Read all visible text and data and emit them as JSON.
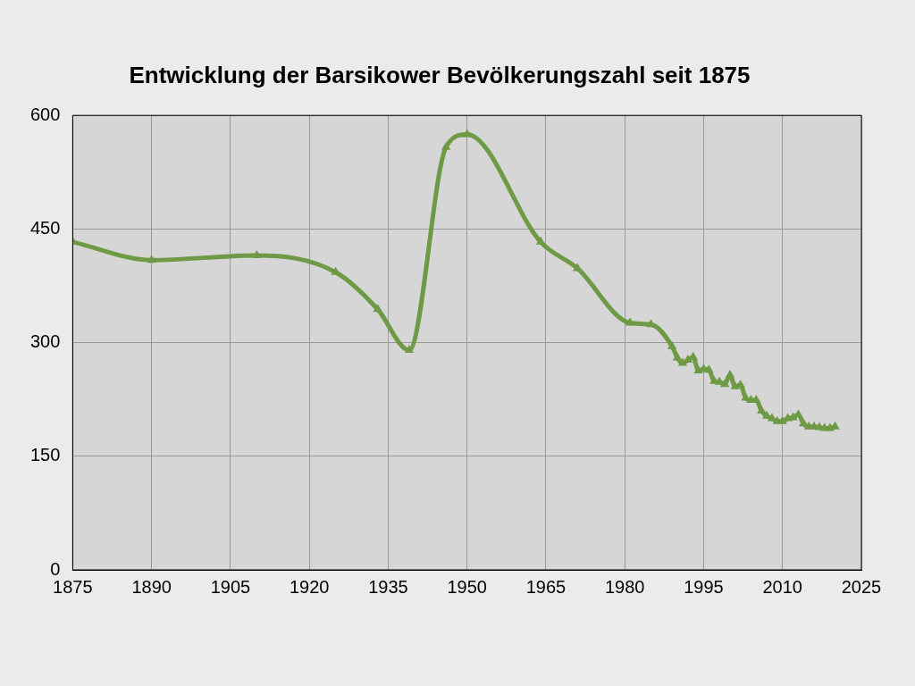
{
  "chart_data": {
    "type": "line",
    "title": "Entwicklung der Barsikower Bevölkerungszahl seit 1875",
    "x": [
      1875,
      1890,
      1910,
      1925,
      1933,
      1939,
      1946,
      1950,
      1964,
      1971,
      1981,
      1985,
      1989,
      1990,
      1991,
      1992,
      1993,
      1994,
      1995,
      1996,
      1997,
      1998,
      1999,
      2000,
      2001,
      2002,
      2003,
      2004,
      2005,
      2006,
      2007,
      2008,
      2009,
      2010,
      2011,
      2012,
      2013,
      2014,
      2015,
      2016,
      2017,
      2018,
      2019,
      2020
    ],
    "series": [
      {
        "color": "#6f9a45",
        "values": [
          433,
          409,
          415,
          393,
          344,
          290,
          558,
          575,
          433,
          398,
          326,
          324,
          295,
          280,
          273,
          277,
          281,
          263,
          265,
          264,
          249,
          248,
          245,
          257,
          242,
          244,
          227,
          224,
          224,
          210,
          203,
          200,
          196,
          196,
          200,
          201,
          205,
          193,
          189,
          189,
          188,
          187,
          187,
          189
        ]
      }
    ],
    "xlim": [
      1875,
      2025
    ],
    "xticks": [
      1875,
      1890,
      1905,
      1920,
      1935,
      1950,
      1965,
      1980,
      1995,
      2010,
      2025
    ],
    "ylim": [
      0,
      600
    ],
    "yticks": [
      0,
      150,
      300,
      450,
      600
    ],
    "grid": true,
    "legend": false,
    "marker": "triangle",
    "line_style": "solid"
  }
}
